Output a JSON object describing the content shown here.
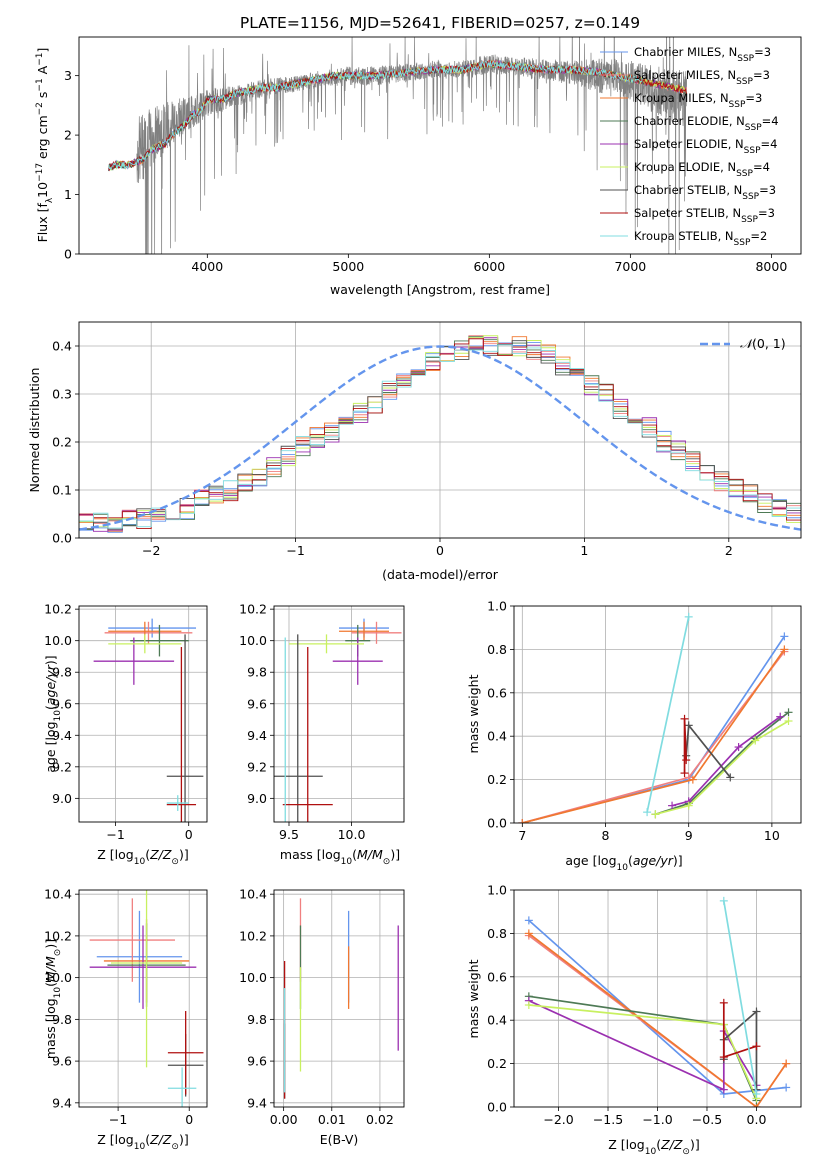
{
  "title": "PLATE=1156, MJD=52641, FIBERID=0257, z=0.149",
  "colors": {
    "Chabrier MILES": "#6495ED",
    "Salpeter MILES": "#F08080",
    "Kroupa MILES": "#F07830",
    "Chabrier ELODIE": "#4E7A55",
    "Salpeter ELODIE": "#9B30B0",
    "Kroupa ELODIE": "#C8F060",
    "Chabrier STELIB": "#505050",
    "Salpeter STELIB": "#B01010",
    "Kroupa STELIB": "#80DCE0",
    "data": "#808080",
    "normal": "#6495ED",
    "grid": "#B0B0B0"
  },
  "chart_data": [
    {
      "id": "spectrum",
      "type": "line",
      "xlabel": "wavelength [Angstrom, rest frame]",
      "ylabel": "Flux [f_λ 10^-17 erg cm^-2 s^-1 A^-1]",
      "xlim": [
        3090,
        8210
      ],
      "ylim": [
        0,
        3.65
      ],
      "xticks": [
        4000,
        5000,
        6000,
        7000,
        8000
      ],
      "yticks": [
        0,
        1,
        2,
        3
      ],
      "grid": false,
      "legend_position": "upper right",
      "data_series": {
        "name": "data",
        "x": [
          3500,
          3600,
          3700,
          3800,
          3900,
          4000,
          4200,
          4400,
          4600,
          4800,
          5000,
          5200,
          5400,
          5600,
          5800,
          6000,
          6200,
          6400,
          6600,
          6800,
          7000,
          7200,
          7400
        ],
        "y_center": [
          1.7,
          1.95,
          2.15,
          2.3,
          2.4,
          2.55,
          2.65,
          2.8,
          2.85,
          2.95,
          3.0,
          3.0,
          3.05,
          3.1,
          3.1,
          3.2,
          3.15,
          3.1,
          3.05,
          3.0,
          2.9,
          2.75,
          2.6
        ],
        "noise_amplitude": [
          2.0,
          1.8,
          1.4,
          1.1,
          0.9,
          0.8,
          0.6,
          0.5,
          0.45,
          0.45,
          0.55,
          0.55,
          0.5,
          0.5,
          0.5,
          0.55,
          0.55,
          0.6,
          0.7,
          1.0,
          1.2,
          1.4,
          1.6
        ]
      },
      "model_x": [
        3300,
        3350,
        3400,
        3450,
        3500,
        3550,
        3600,
        3650,
        3700,
        3750,
        3800,
        3850,
        3900,
        3950,
        4000,
        4100,
        4200,
        4300,
        4400,
        4500,
        4600,
        4700,
        4800,
        4900,
        5000,
        5200,
        5400,
        5600,
        5800,
        6000,
        6200,
        6400,
        6600,
        6800,
        7000,
        7200,
        7400
      ],
      "model_y": [
        1.45,
        1.5,
        1.5,
        1.5,
        1.55,
        1.6,
        1.75,
        1.8,
        1.85,
        2.0,
        2.1,
        2.2,
        2.35,
        2.4,
        2.6,
        2.6,
        2.7,
        2.75,
        2.8,
        2.8,
        2.85,
        2.9,
        2.95,
        3.0,
        3.0,
        3.0,
        3.05,
        3.1,
        3.1,
        3.2,
        3.15,
        3.1,
        3.1,
        3.05,
        2.95,
        2.85,
        2.75
      ],
      "legend": [
        {
          "text": "Chabrier MILES, N",
          "sub": "SSP",
          "suffix": "=3"
        },
        {
          "text": "Salpeter MILES, N",
          "sub": "SSP",
          "suffix": "=3"
        },
        {
          "text": "Kroupa MILES, N",
          "sub": "SSP",
          "suffix": "=3"
        },
        {
          "text": "Chabrier ELODIE, N",
          "sub": "SSP",
          "suffix": "=4"
        },
        {
          "text": "Salpeter ELODIE, N",
          "sub": "SSP",
          "suffix": "=4"
        },
        {
          "text": "Kroupa ELODIE, N",
          "sub": "SSP",
          "suffix": "=4"
        },
        {
          "text": "Chabrier STELIB, N",
          "sub": "SSP",
          "suffix": "=3"
        },
        {
          "text": "Salpeter STELIB, N",
          "sub": "SSP",
          "suffix": "=3"
        },
        {
          "text": "Kroupa STELIB, N",
          "sub": "SSP",
          "suffix": "=2"
        }
      ]
    },
    {
      "id": "residuals",
      "type": "line",
      "xlabel": "(data-model)/error",
      "ylabel": "Normed distribution",
      "xlim": [
        -2.5,
        2.5
      ],
      "ylim": [
        0,
        0.45
      ],
      "xticks": [
        -2,
        -1,
        0,
        1,
        2
      ],
      "yticks": [
        0.0,
        0.1,
        0.2,
        0.3,
        0.4
      ],
      "grid": true,
      "legend_position": "upper right",
      "legend": "N(0,1)",
      "bin_width": 0.1,
      "bin_start": -2.5,
      "histogram_base": [
        0.03,
        0.03,
        0.03,
        0.04,
        0.04,
        0.04,
        0.05,
        0.06,
        0.08,
        0.09,
        0.1,
        0.12,
        0.13,
        0.15,
        0.17,
        0.19,
        0.21,
        0.22,
        0.24,
        0.26,
        0.28,
        0.31,
        0.33,
        0.35,
        0.37,
        0.38,
        0.39,
        0.4,
        0.4,
        0.4,
        0.4,
        0.39,
        0.38,
        0.36,
        0.34,
        0.32,
        0.3,
        0.27,
        0.25,
        0.23,
        0.2,
        0.18,
        0.16,
        0.14,
        0.12,
        0.1,
        0.09,
        0.07,
        0.06,
        0.05,
        0.04
      ]
    },
    {
      "id": "age-vs-Z",
      "type": "scatter",
      "xlabel": "Z [log10(Z/Z☉)]",
      "ylabel": "age [log10(age/yr)]",
      "xlim": [
        -1.5,
        0.25
      ],
      "ylim": [
        8.85,
        10.22
      ],
      "xticks": [
        -1,
        0
      ],
      "yticks": [
        9.0,
        9.2,
        9.4,
        9.6,
        9.8,
        10.0,
        10.2
      ],
      "grid": true,
      "points": [
        {
          "model": "Chabrier MILES",
          "x": -0.5,
          "y": 10.08,
          "xerr": 0.6,
          "yerr": 0.06
        },
        {
          "model": "Salpeter MILES",
          "x": -0.55,
          "y": 10.05,
          "xerr": 0.6,
          "yerr": 0.07
        },
        {
          "model": "Kroupa MILES",
          "x": -0.6,
          "y": 10.06,
          "xerr": 0.5,
          "yerr": 0.06
        },
        {
          "model": "Chabrier ELODIE",
          "x": -0.4,
          "y": 10.0,
          "xerr": 0.4,
          "yerr": 0.1
        },
        {
          "model": "Salpeter ELODIE",
          "x": -0.75,
          "y": 9.87,
          "xerr": 0.55,
          "yerr": 0.15
        },
        {
          "model": "Kroupa ELODIE",
          "x": -0.6,
          "y": 9.98,
          "xerr": 0.5,
          "yerr": 0.06
        },
        {
          "model": "Chabrier STELIB",
          "x": -0.05,
          "y": 9.14,
          "xerr": 0.25,
          "yerr": 0.9
        },
        {
          "model": "Salpeter STELIB",
          "x": -0.1,
          "y": 8.96,
          "xerr": 0.2,
          "yerr": 1.0
        },
        {
          "model": "Kroupa STELIB",
          "x": -0.15,
          "y": 8.97,
          "xerr": 0.15,
          "yerr": 0.05
        }
      ]
    },
    {
      "id": "age-vs-mass",
      "type": "scatter",
      "xlabel": "mass [log10(M/M☉)]",
      "ylabel": "",
      "xlim": [
        9.38,
        10.42
      ],
      "ylim": [
        8.85,
        10.22
      ],
      "xticks": [
        9.5,
        10.0
      ],
      "yticks": [
        9.0,
        9.2,
        9.4,
        9.6,
        9.8,
        10.0,
        10.2
      ],
      "grid": true,
      "points": [
        {
          "model": "Chabrier MILES",
          "x": 10.1,
          "y": 10.08,
          "xerr": 0.2,
          "yerr": 0.06
        },
        {
          "model": "Salpeter MILES",
          "x": 10.2,
          "y": 10.05,
          "xerr": 0.2,
          "yerr": 0.07
        },
        {
          "model": "Kroupa MILES",
          "x": 10.1,
          "y": 10.06,
          "xerr": 0.2,
          "yerr": 0.06
        },
        {
          "model": "Chabrier ELODIE",
          "x": 10.05,
          "y": 10.0,
          "xerr": 0.1,
          "yerr": 0.1
        },
        {
          "model": "Salpeter ELODIE",
          "x": 10.05,
          "y": 9.87,
          "xerr": 0.2,
          "yerr": 0.15
        },
        {
          "model": "Kroupa ELODIE",
          "x": 9.8,
          "y": 9.98,
          "xerr": 0.3,
          "yerr": 0.06
        },
        {
          "model": "Chabrier STELIB",
          "x": 9.57,
          "y": 9.14,
          "xerr": 0.2,
          "yerr": 0.9
        },
        {
          "model": "Salpeter STELIB",
          "x": 9.65,
          "y": 8.96,
          "xerr": 0.2,
          "yerr": 1.0
        },
        {
          "model": "Kroupa STELIB",
          "x": 9.47,
          "y": 8.97,
          "xerr": 0.0,
          "yerr": 1.05
        }
      ]
    },
    {
      "id": "weight-vs-age",
      "type": "line",
      "xlabel": "age [log10(age/yr)]",
      "ylabel": "mass weight",
      "xlim": [
        6.9,
        10.35
      ],
      "ylim": [
        0,
        1.0
      ],
      "xticks": [
        7,
        8,
        9,
        10
      ],
      "yticks": [
        0.0,
        0.2,
        0.4,
        0.6,
        0.8,
        1.0
      ],
      "grid": true,
      "series": [
        {
          "model": "Chabrier MILES",
          "x": [
            7.0,
            9.0,
            10.15
          ],
          "y": [
            0.0,
            0.2,
            0.86
          ]
        },
        {
          "model": "Salpeter MILES",
          "x": [
            7.0,
            9.0,
            10.15
          ],
          "y": [
            0.0,
            0.21,
            0.79
          ]
        },
        {
          "model": "Kroupa MILES",
          "x": [
            7.0,
            9.05,
            10.15
          ],
          "y": [
            0.0,
            0.2,
            0.8
          ]
        },
        {
          "model": "Chabrier ELODIE",
          "x": [
            8.6,
            9.0,
            9.8,
            10.2
          ],
          "y": [
            0.04,
            0.09,
            0.39,
            0.51
          ]
        },
        {
          "model": "Salpeter ELODIE",
          "x": [
            8.8,
            9.0,
            9.6,
            10.1
          ],
          "y": [
            0.08,
            0.1,
            0.35,
            0.49
          ]
        },
        {
          "model": "Kroupa ELODIE",
          "x": [
            8.6,
            9.0,
            9.8,
            10.2
          ],
          "y": [
            0.04,
            0.08,
            0.38,
            0.47
          ]
        },
        {
          "model": "Chabrier STELIB",
          "x": [
            8.97,
            9.0,
            9.5
          ],
          "y": [
            0.31,
            0.45,
            0.21
          ]
        },
        {
          "model": "Salpeter STELIB",
          "x": [
            8.95,
            8.95,
            8.97
          ],
          "y": [
            0.23,
            0.48,
            0.29
          ]
        },
        {
          "model": "Kroupa STELIB",
          "x": [
            8.5,
            9.0
          ],
          "y": [
            0.05,
            0.95
          ]
        }
      ]
    },
    {
      "id": "mass-vs-Z",
      "type": "scatter",
      "xlabel": "Z [log10(Z/Z☉)]",
      "ylabel": "mass [log10(M/M☉)]",
      "xlim": [
        -1.55,
        0.25
      ],
      "ylim": [
        9.38,
        10.42
      ],
      "xticks": [
        -1,
        0
      ],
      "yticks": [
        9.4,
        9.6,
        9.8,
        10.0,
        10.2,
        10.4
      ],
      "grid": true,
      "points": [
        {
          "model": "Chabrier MILES",
          "x": -0.7,
          "y": 10.1,
          "xerr": 0.6,
          "yerr": 0.22
        },
        {
          "model": "Salpeter MILES",
          "x": -0.8,
          "y": 10.18,
          "xerr": 0.6,
          "yerr": 0.2
        },
        {
          "model": "Kroupa MILES",
          "x": -0.6,
          "y": 10.08,
          "xerr": 0.6,
          "yerr": 0.2
        },
        {
          "model": "Chabrier ELODIE",
          "x": -0.6,
          "y": 10.06,
          "xerr": 0.55,
          "yerr": 0.2
        },
        {
          "model": "Salpeter ELODIE",
          "x": -0.65,
          "y": 10.05,
          "xerr": 0.75,
          "yerr": 0.2
        },
        {
          "model": "Kroupa ELODIE",
          "x": -0.6,
          "y": 10.07,
          "xerr": 0.5,
          "yerr": 0.5
        },
        {
          "model": "Chabrier STELIB",
          "x": -0.05,
          "y": 9.58,
          "xerr": 0.25,
          "yerr": 0.15
        },
        {
          "model": "Salpeter STELIB",
          "x": -0.05,
          "y": 9.64,
          "xerr": 0.25,
          "yerr": 0.2
        },
        {
          "model": "Kroupa STELIB",
          "x": -0.1,
          "y": 9.47,
          "xerr": 0.2,
          "yerr": 0.1
        }
      ]
    },
    {
      "id": "mass-vs-EBV",
      "type": "scatter",
      "xlabel": "E(B-V)",
      "ylabel": "",
      "xlim": [
        -0.002,
        0.025
      ],
      "ylim": [
        9.38,
        10.42
      ],
      "xticks": [
        0.0,
        0.01,
        0.02
      ],
      "yticks": [
        9.4,
        9.6,
        9.8,
        10.0,
        10.2,
        10.4
      ],
      "grid": true,
      "points": [
        {
          "model": "Chabrier MILES",
          "x": 0.0135,
          "y": 10.1,
          "yerr": 0.22
        },
        {
          "model": "Salpeter MILES",
          "x": 0.0035,
          "y": 10.18,
          "yerr": 0.2
        },
        {
          "model": "Kroupa MILES",
          "x": 0.0135,
          "y": 10.0,
          "yerr": 0.15
        },
        {
          "model": "Chabrier ELODIE",
          "x": 0.0035,
          "y": 10.05,
          "yerr": 0.2
        },
        {
          "model": "Salpeter ELODIE",
          "x": 0.0238,
          "y": 9.95,
          "yerr": 0.3
        },
        {
          "model": "Kroupa ELODIE",
          "x": 0.0035,
          "y": 9.8,
          "yerr": 0.25
        },
        {
          "model": "Chabrier STELIB",
          "x": 0.0002,
          "y": 9.6,
          "yerr": 0.18
        },
        {
          "model": "Salpeter STELIB",
          "x": 0.0002,
          "y": 9.75,
          "yerr": 0.33
        },
        {
          "model": "Kroupa STELIB",
          "x": 0.0002,
          "y": 9.7,
          "yerr": 0.25
        }
      ]
    },
    {
      "id": "weight-vs-Z",
      "type": "line",
      "xlabel": "Z [log10(Z/Z☉)]",
      "ylabel": "mass weight",
      "xlim": [
        -2.45,
        0.45
      ],
      "ylim": [
        0,
        1.0
      ],
      "xticks": [
        -2.0,
        -1.5,
        -1.0,
        -0.5,
        0.0
      ],
      "yticks": [
        0.0,
        0.2,
        0.4,
        0.6,
        0.8,
        1.0
      ],
      "grid": true,
      "series": [
        {
          "model": "Chabrier MILES",
          "x": [
            -2.3,
            -0.33,
            0.3
          ],
          "y": [
            0.86,
            0.06,
            0.09
          ]
        },
        {
          "model": "Salpeter MILES",
          "x": [
            -2.3,
            -0.0,
            0.3
          ],
          "y": [
            0.79,
            0.0,
            0.2
          ]
        },
        {
          "model": "Kroupa MILES",
          "x": [
            -2.3,
            0.0,
            0.3
          ],
          "y": [
            0.8,
            0.0,
            0.2
          ]
        },
        {
          "model": "Chabrier ELODIE",
          "x": [
            -2.3,
            -0.33,
            0.0
          ],
          "y": [
            0.51,
            0.38,
            0.03
          ]
        },
        {
          "model": "Salpeter ELODIE",
          "x": [
            -2.3,
            -0.33,
            -0.33,
            0.0
          ],
          "y": [
            0.49,
            0.08,
            0.35,
            0.1
          ]
        },
        {
          "model": "Kroupa ELODIE",
          "x": [
            -2.3,
            -0.33,
            0.0
          ],
          "y": [
            0.47,
            0.38,
            0.04
          ]
        },
        {
          "model": "Chabrier STELIB",
          "x": [
            -0.33,
            -0.33,
            0.0,
            0.0
          ],
          "y": [
            0.22,
            0.31,
            0.44,
            0.08
          ]
        },
        {
          "model": "Salpeter STELIB",
          "x": [
            -0.33,
            -0.33,
            0.0
          ],
          "y": [
            0.48,
            0.23,
            0.28
          ]
        },
        {
          "model": "Kroupa STELIB",
          "x": [
            -0.33,
            0.0
          ],
          "y": [
            0.95,
            0.06
          ]
        }
      ]
    }
  ]
}
